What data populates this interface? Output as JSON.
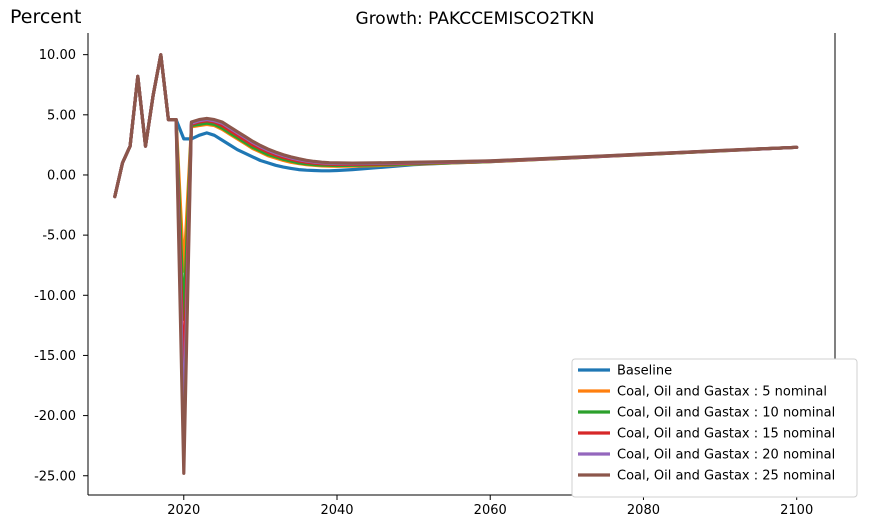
{
  "chart_data": {
    "type": "line",
    "title": "Growth: PAKCCEMISCO2TKN",
    "ylabel": "Percent",
    "xlabel": "",
    "xlim": [
      2007.5,
      2105
    ],
    "ylim": [
      -26.6,
      11.8
    ],
    "xticks": [
      2020,
      2040,
      2060,
      2080,
      2100
    ],
    "yticks": [
      10,
      5,
      0,
      -5,
      -10,
      -15,
      -20,
      -25
    ],
    "ytick_labels": [
      "10.00",
      "5.00",
      "0.00",
      "-5.00",
      "-10.00",
      "-15.00",
      "-20.00",
      "-25.00"
    ],
    "legend_position": "lower right",
    "grid": false,
    "x": [
      2011,
      2012,
      2013,
      2014,
      2015,
      2016,
      2017,
      2018,
      2019,
      2020,
      2021,
      2022,
      2023,
      2024,
      2025,
      2026,
      2027,
      2028,
      2029,
      2030,
      2031,
      2032,
      2033,
      2034,
      2035,
      2036,
      2037,
      2038,
      2039,
      2040,
      2042,
      2045,
      2050,
      2055,
      2060,
      2065,
      2070,
      2075,
      2080,
      2085,
      2090,
      2095,
      2100
    ],
    "series": [
      {
        "name": "Baseline",
        "color": "#1f77b4",
        "values": [
          -1.8,
          1.0,
          2.4,
          8.2,
          2.4,
          6.6,
          10.0,
          4.6,
          4.6,
          3.0,
          3.0,
          3.3,
          3.5,
          3.3,
          2.9,
          2.5,
          2.1,
          1.8,
          1.5,
          1.2,
          1.0,
          0.8,
          0.65,
          0.55,
          0.45,
          0.4,
          0.37,
          0.35,
          0.35,
          0.37,
          0.45,
          0.6,
          0.85,
          1.0,
          1.1,
          1.25,
          1.4,
          1.55,
          1.7,
          1.85,
          2.0,
          2.15,
          2.3
        ]
      },
      {
        "name": "Coal, Oil and Gastax : 5 nominal",
        "color": "#ff7f0e",
        "values": [
          -1.8,
          1.0,
          2.4,
          8.2,
          2.4,
          6.6,
          10.0,
          4.6,
          4.6,
          -8.0,
          4.0,
          4.1,
          4.2,
          4.1,
          3.8,
          3.4,
          3.0,
          2.6,
          2.2,
          1.9,
          1.6,
          1.4,
          1.2,
          1.05,
          0.95,
          0.85,
          0.8,
          0.75,
          0.73,
          0.72,
          0.73,
          0.78,
          0.9,
          1.0,
          1.1,
          1.25,
          1.4,
          1.55,
          1.7,
          1.85,
          2.0,
          2.15,
          2.3
        ]
      },
      {
        "name": "Coal, Oil and Gastax : 10 nominal",
        "color": "#2ca02c",
        "values": [
          -1.8,
          1.0,
          2.4,
          8.2,
          2.4,
          6.6,
          10.0,
          4.6,
          4.6,
          -12.0,
          4.1,
          4.2,
          4.3,
          4.2,
          3.9,
          3.5,
          3.1,
          2.7,
          2.3,
          2.0,
          1.7,
          1.5,
          1.3,
          1.15,
          1.0,
          0.92,
          0.86,
          0.82,
          0.8,
          0.79,
          0.8,
          0.84,
          0.93,
          1.02,
          1.12,
          1.26,
          1.41,
          1.56,
          1.71,
          1.86,
          2.01,
          2.16,
          2.3
        ]
      },
      {
        "name": "Coal, Oil and Gastax : 15 nominal",
        "color": "#d62728",
        "values": [
          -1.8,
          1.0,
          2.4,
          8.2,
          2.4,
          6.6,
          10.0,
          4.6,
          4.6,
          -17.0,
          4.2,
          4.4,
          4.5,
          4.4,
          4.1,
          3.7,
          3.3,
          2.9,
          2.5,
          2.2,
          1.9,
          1.65,
          1.45,
          1.3,
          1.15,
          1.05,
          0.98,
          0.93,
          0.9,
          0.88,
          0.88,
          0.9,
          0.98,
          1.05,
          1.14,
          1.28,
          1.42,
          1.57,
          1.72,
          1.87,
          2.02,
          2.16,
          2.3
        ]
      },
      {
        "name": "Coal, Oil and Gastax : 20 nominal",
        "color": "#9467bd",
        "values": [
          -1.8,
          1.0,
          2.4,
          8.2,
          2.4,
          6.6,
          10.0,
          4.6,
          4.6,
          -21.0,
          4.3,
          4.5,
          4.6,
          4.5,
          4.3,
          3.9,
          3.5,
          3.1,
          2.7,
          2.35,
          2.05,
          1.8,
          1.6,
          1.42,
          1.27,
          1.15,
          1.07,
          1.01,
          0.97,
          0.95,
          0.94,
          0.96,
          1.02,
          1.08,
          1.16,
          1.29,
          1.43,
          1.58,
          1.73,
          1.88,
          2.02,
          2.16,
          2.3
        ]
      },
      {
        "name": "Coal, Oil and Gastax : 25 nominal",
        "color": "#8c564b",
        "values": [
          -1.8,
          1.0,
          2.4,
          8.2,
          2.4,
          6.6,
          10.0,
          4.6,
          4.6,
          -24.8,
          4.4,
          4.6,
          4.7,
          4.6,
          4.4,
          4.0,
          3.6,
          3.2,
          2.8,
          2.45,
          2.15,
          1.9,
          1.68,
          1.5,
          1.35,
          1.22,
          1.13,
          1.06,
          1.02,
          1.0,
          0.99,
          1.0,
          1.06,
          1.11,
          1.18,
          1.31,
          1.45,
          1.59,
          1.74,
          1.88,
          2.03,
          2.17,
          2.3
        ]
      }
    ]
  }
}
